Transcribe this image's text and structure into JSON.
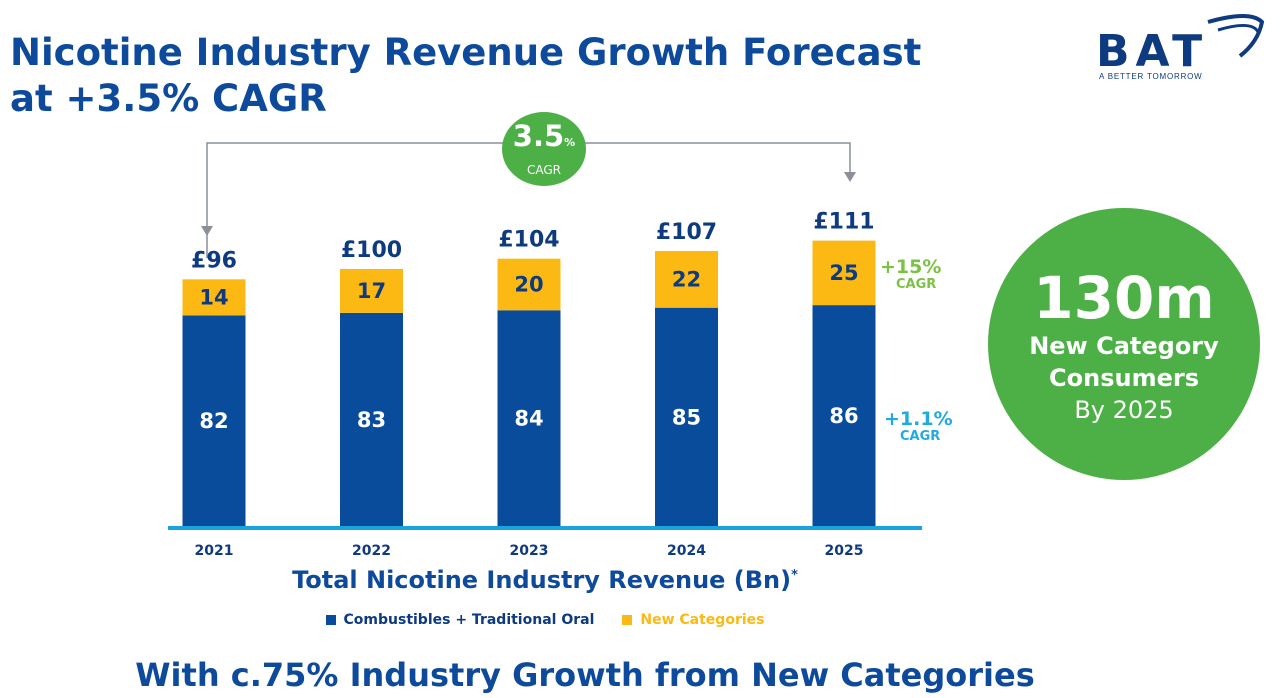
{
  "title": {
    "line1": "Nicotine Industry Revenue Growth Forecast",
    "line2": "at +3.5% CAGR"
  },
  "logo": {
    "text": "BAT",
    "tagline": "A BETTER TOMORROW"
  },
  "cagr_badge": {
    "value": "3.5",
    "unit": "%",
    "label": "CAGR"
  },
  "new_categories_cagr": {
    "value": "+15%",
    "label": "CAGR"
  },
  "combustibles_cagr": {
    "value": "+1.1%",
    "label": "CAGR"
  },
  "callout": {
    "number": "130m",
    "line1": "New Category",
    "line2": "Consumers",
    "line3": "By 2025"
  },
  "chart_title": "Total Nicotine Industry Revenue (Bn)",
  "chart_title_note": "*",
  "bottom_title": "With c.75% Industry Growth from New Categories",
  "colors": {
    "title": "#0e4a9c",
    "combustibles": "#0a4c9c",
    "new_categories": "#fdb913",
    "green": "#4db046",
    "axis": "#19a4e0",
    "light_green": "#7cc242",
    "light_blue": "#21a9e1"
  },
  "chart_data": {
    "type": "bar",
    "stacked": true,
    "categories": [
      "2021",
      "2022",
      "2023",
      "2024",
      "2025"
    ],
    "series": [
      {
        "name": "Combustibles + Traditional Oral",
        "values": [
          82,
          83,
          84,
          85,
          86
        ]
      },
      {
        "name": "New Categories",
        "values": [
          14,
          17,
          20,
          22,
          25
        ]
      }
    ],
    "totals": [
      "£96",
      "£100",
      "£104",
      "£107",
      "£111"
    ],
    "title": "Total Nicotine Industry Revenue (Bn)",
    "xlabel": "",
    "ylabel": "",
    "ylim": [
      0,
      111
    ],
    "legend": [
      "Combustibles + Traditional Oral",
      "New Categories"
    ],
    "legend_position": "bottom"
  }
}
